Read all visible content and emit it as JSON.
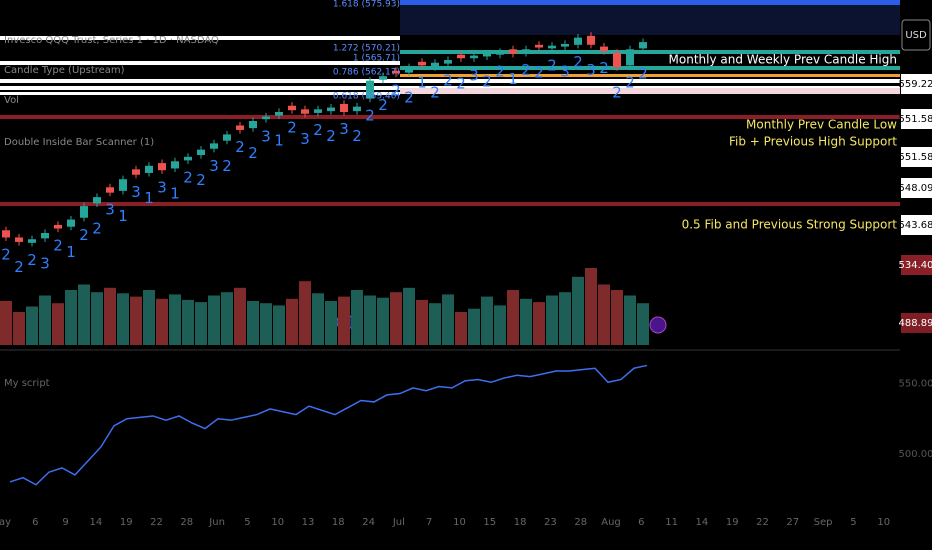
{
  "chart_data": [
    {
      "type": "candlestick",
      "legend": [
        "Invesco QQQ Trust, Series 1 · 1D · NASDAQ",
        "Candle Type (Upstream)",
        "Vol",
        "Double Inside Bar Scanner (1)"
      ],
      "open": [
        542.8,
        542,
        541.4,
        541.9,
        543.4,
        543.2,
        544.2,
        545.8,
        547.6,
        547.2,
        549.6,
        549.2,
        550.3,
        549.7,
        550.6,
        551.2,
        551.9,
        552.8,
        554.5,
        554.2,
        555.2,
        555.6,
        556.7,
        556.3,
        555.9,
        556.1,
        556.9,
        556.1,
        557.5,
        559.6,
        560.6,
        560.4,
        561.6,
        561,
        561.4,
        562.4,
        562,
        562.2,
        562.4,
        563,
        562.6,
        563.5,
        563.1,
        563.3,
        563.5,
        564.5,
        563.3,
        562.6,
        561.2,
        563.1
      ],
      "high": [
        543.2,
        542.4,
        542.2,
        542.9,
        543.8,
        544.4,
        545.9,
        546.9,
        548,
        548.9,
        550,
        550.4,
        550.7,
        550.9,
        551.4,
        552.2,
        552.9,
        553.9,
        554.9,
        555.4,
        555.9,
        556.4,
        557.1,
        556.7,
        556.7,
        556.9,
        557.3,
        557,
        559.9,
        560.4,
        561,
        561.4,
        562,
        561.9,
        562.2,
        562.8,
        562.7,
        562.9,
        563.1,
        563.4,
        563.4,
        563.9,
        563.8,
        564,
        564.7,
        564.9,
        563.7,
        563,
        563.4,
        564.2
      ],
      "low": [
        541.6,
        541.1,
        541,
        541.5,
        542.6,
        542.8,
        543.8,
        545.4,
        546.6,
        546.8,
        548.6,
        548.8,
        549.1,
        549.3,
        550.2,
        550.8,
        551.5,
        552.4,
        553.6,
        553.8,
        554.8,
        555.2,
        555.8,
        555.4,
        555.5,
        555.7,
        555.6,
        555.7,
        557.1,
        559.2,
        559.9,
        560,
        560.8,
        560.6,
        561,
        561.6,
        561.6,
        561.8,
        562,
        562.1,
        562.2,
        562.8,
        562.7,
        562.9,
        563.1,
        563.1,
        562.4,
        560.6,
        560.8,
        562.7
      ],
      "close": [
        542,
        541.5,
        541.8,
        542.5,
        543,
        544,
        545.5,
        546.5,
        547,
        548.5,
        549,
        550,
        549.5,
        550.5,
        551,
        551.8,
        552.5,
        553.5,
        554,
        555,
        555.5,
        556,
        556.2,
        555.8,
        556.3,
        556.5,
        556,
        556.6,
        559.5,
        560,
        560.3,
        561,
        561.2,
        561.5,
        561.8,
        562,
        562.3,
        562.5,
        562.7,
        562.5,
        563,
        563.2,
        563.4,
        563.6,
        564.3,
        563.5,
        562.8,
        561,
        563,
        563.8
      ],
      "type_labels": [
        "2",
        "2",
        "2",
        "3",
        "2",
        "1",
        "2",
        "2",
        "3",
        "1",
        "3",
        "1",
        "3",
        "1",
        "2",
        "2",
        "3",
        "2",
        "2",
        "2",
        "3",
        "1",
        "2",
        "3",
        "2",
        "2",
        "3",
        "2",
        "2",
        "2",
        "2",
        "2",
        "1",
        "2",
        "2",
        "2",
        "3",
        "2",
        "2",
        "1",
        "2",
        "2",
        "2",
        "3",
        "2",
        "3",
        "2",
        "2",
        "2",
        "2"
      ],
      "up_color": "#26a69a",
      "down_color": "#ef5350",
      "label_color": "#2f7fff",
      "ylim": [
        530,
        568.5
      ],
      "currency": "USD",
      "price_labels": [
        "559.22",
        "551.58",
        "551.58",
        "548.09",
        "543.68",
        "534.40",
        "488.89"
      ],
      "fib_labels": [
        "1.618 (575.93)",
        "1.272 (570.21)",
        "1 (565.71)",
        "0.786 (562.17)",
        "0.618 (559.40)"
      ],
      "annotations": [
        "Monthly and Weekly Prev Candle High",
        "Monthly Prev Candle Low",
        "Fib + Previous High Support",
        "0.5 Fib and Previous Strong Support"
      ]
    },
    {
      "type": "bar",
      "values": [
        40,
        30,
        35,
        45,
        38,
        50,
        55,
        48,
        52,
        47,
        44,
        50,
        42,
        46,
        41,
        39,
        45,
        48,
        52,
        40,
        38,
        36,
        42,
        58,
        47,
        40,
        44,
        50,
        45,
        43,
        48,
        52,
        41,
        38,
        46,
        30,
        33,
        44,
        36,
        50,
        42,
        39,
        45,
        48,
        62,
        70,
        55,
        50,
        45,
        38
      ],
      "up_color": "#1d5e56",
      "down_color": "#7f2b2b",
      "ylim": [
        0,
        100
      ]
    },
    {
      "type": "line",
      "title": "My script",
      "color": "#3d6ff0",
      "values": [
        480,
        483,
        478,
        487,
        490,
        485,
        495,
        505,
        520,
        525,
        526,
        527,
        524,
        527,
        522,
        518,
        525,
        524,
        526,
        528,
        532,
        530,
        528,
        534,
        531,
        528,
        533,
        538,
        537,
        542,
        543,
        547,
        545,
        548,
        547,
        552,
        553,
        551,
        554,
        556,
        555,
        557,
        559,
        559,
        560,
        561,
        551,
        553,
        561,
        563
      ],
      "ylim": [
        460,
        574
      ],
      "yticks": [
        {
          "value": 550,
          "label": "550.00"
        },
        {
          "value": 500,
          "label": "500.00"
        }
      ]
    },
    {
      "type": "x-axis",
      "categories": [
        "ay",
        "6",
        "9",
        "14",
        "19",
        "22",
        "28",
        "Jun",
        "5",
        "10",
        "13",
        "18",
        "24",
        "Jul",
        "7",
        "10",
        "15",
        "18",
        "23",
        "28",
        "Aug",
        "6",
        "11",
        "14",
        "19",
        "22",
        "27",
        "Sep",
        "5",
        "10"
      ]
    }
  ]
}
